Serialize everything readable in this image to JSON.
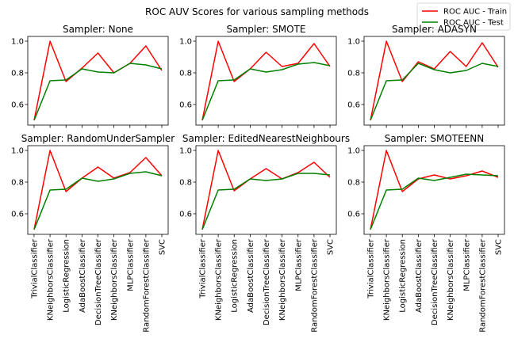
{
  "chart_data": {
    "type": "line",
    "title": "ROC AUV Scores for various sampling methods",
    "categories": [
      "TrivialClassifier",
      "KNeighborsClassifier",
      "LogisticRegression",
      "AdaBoostClassifier",
      "DecisionTreeClassifier",
      "KNeighborsClassifier",
      "MLPClassifier",
      "RandomForestClassifier",
      "SVC"
    ],
    "ylim": [
      0.47,
      1.03
    ],
    "yticks": [
      0.6,
      0.8,
      1.0
    ],
    "ytick_labels": [
      "0.6",
      "0.8",
      "1.0"
    ],
    "grid": false,
    "legend_position": "top-right",
    "series_styles": [
      {
        "name": "ROC AUC - Train",
        "color": "#ff0000"
      },
      {
        "name": "ROC AUC - Test",
        "color": "#008000"
      }
    ],
    "subplots": [
      {
        "title": "Sampler: None",
        "train": [
          0.5,
          1.0,
          0.745,
          0.83,
          0.925,
          0.8,
          0.86,
          0.97,
          0.815
        ],
        "test": [
          0.5,
          0.75,
          0.755,
          0.825,
          0.805,
          0.8,
          0.86,
          0.85,
          0.825
        ]
      },
      {
        "title": "Sampler: SMOTE",
        "train": [
          0.5,
          1.0,
          0.745,
          0.825,
          0.93,
          0.84,
          0.86,
          0.985,
          0.84
        ],
        "test": [
          0.5,
          0.75,
          0.755,
          0.825,
          0.805,
          0.82,
          0.855,
          0.865,
          0.845
        ]
      },
      {
        "title": "Sampler: ADASYN",
        "train": [
          0.5,
          1.0,
          0.745,
          0.87,
          0.825,
          0.935,
          0.84,
          0.99,
          0.835
        ],
        "test": [
          0.5,
          0.75,
          0.755,
          0.86,
          0.82,
          0.8,
          0.815,
          0.86,
          0.84
        ]
      },
      {
        "title": "Sampler: RandomUnderSampler",
        "train": [
          0.5,
          1.0,
          0.74,
          0.825,
          0.895,
          0.825,
          0.86,
          0.955,
          0.84
        ],
        "test": [
          0.5,
          0.75,
          0.755,
          0.825,
          0.805,
          0.82,
          0.855,
          0.865,
          0.84
        ]
      },
      {
        "title": "Sampler: EditedNearestNeighbours",
        "train": [
          0.5,
          1.0,
          0.745,
          0.82,
          0.885,
          0.82,
          0.86,
          0.925,
          0.83
        ],
        "test": [
          0.5,
          0.75,
          0.755,
          0.82,
          0.81,
          0.82,
          0.855,
          0.855,
          0.845
        ]
      },
      {
        "title": "Sampler: SMOTEENN",
        "train": [
          0.5,
          1.0,
          0.74,
          0.82,
          0.845,
          0.82,
          0.84,
          0.87,
          0.83
        ],
        "test": [
          0.5,
          0.75,
          0.755,
          0.825,
          0.81,
          0.83,
          0.85,
          0.845,
          0.84
        ]
      }
    ]
  }
}
